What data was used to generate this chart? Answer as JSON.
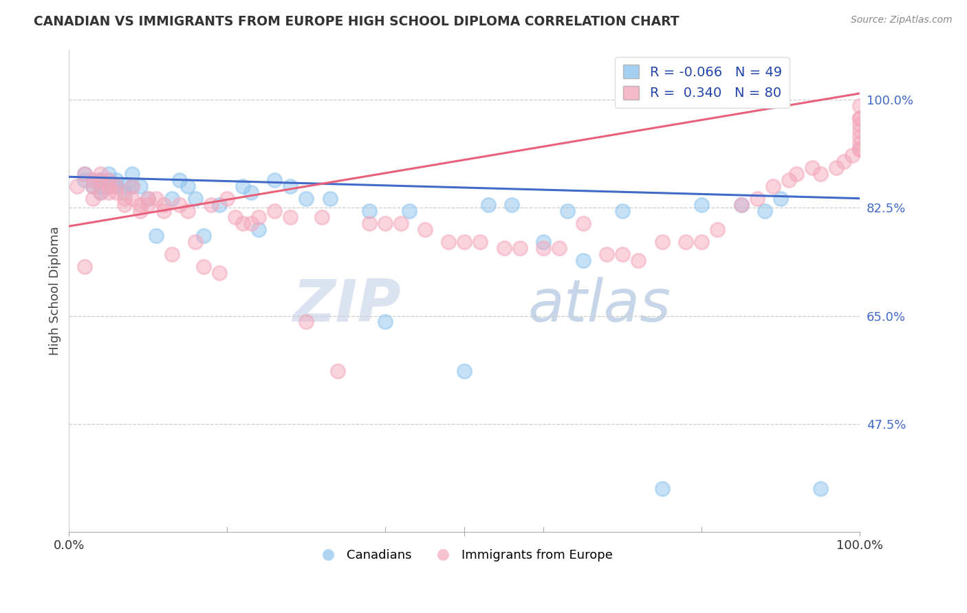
{
  "title": "CANADIAN VS IMMIGRANTS FROM EUROPE HIGH SCHOOL DIPLOMA CORRELATION CHART",
  "source": "Source: ZipAtlas.com",
  "ylabel": "High School Diploma",
  "ytick_labels": [
    "100.0%",
    "82.5%",
    "65.0%",
    "47.5%"
  ],
  "ytick_values": [
    1.0,
    0.825,
    0.65,
    0.475
  ],
  "xlim": [
    0.0,
    1.0
  ],
  "ylim": [
    0.3,
    1.08
  ],
  "legend_blue_r": "-0.066",
  "legend_blue_n": "49",
  "legend_pink_r": "0.340",
  "legend_pink_n": "80",
  "blue_color": "#8FC4EE",
  "pink_color": "#F4A8BC",
  "blue_line_color": "#4169C8",
  "pink_line_color": "#E8607A",
  "watermark_zip": "ZIP",
  "watermark_atlas": "atlas",
  "blue_points_x": [
    0.02,
    0.02,
    0.03,
    0.03,
    0.04,
    0.04,
    0.04,
    0.04,
    0.05,
    0.05,
    0.05,
    0.06,
    0.06,
    0.07,
    0.07,
    0.08,
    0.08,
    0.09,
    0.1,
    0.11,
    0.13,
    0.14,
    0.15,
    0.16,
    0.17,
    0.19,
    0.22,
    0.23,
    0.24,
    0.26,
    0.28,
    0.3,
    0.33,
    0.38,
    0.4,
    0.43,
    0.5,
    0.53,
    0.56,
    0.6,
    0.63,
    0.65,
    0.7,
    0.75,
    0.8,
    0.85,
    0.88,
    0.9,
    0.95
  ],
  "blue_points_y": [
    0.88,
    0.87,
    0.87,
    0.86,
    0.87,
    0.87,
    0.86,
    0.85,
    0.88,
    0.87,
    0.86,
    0.87,
    0.86,
    0.86,
    0.85,
    0.88,
    0.86,
    0.86,
    0.84,
    0.78,
    0.84,
    0.87,
    0.86,
    0.84,
    0.78,
    0.83,
    0.86,
    0.85,
    0.79,
    0.87,
    0.86,
    0.84,
    0.84,
    0.82,
    0.64,
    0.82,
    0.56,
    0.83,
    0.83,
    0.77,
    0.82,
    0.74,
    0.82,
    0.37,
    0.83,
    0.83,
    0.82,
    0.84,
    0.37
  ],
  "pink_points_x": [
    0.01,
    0.02,
    0.02,
    0.03,
    0.03,
    0.03,
    0.04,
    0.04,
    0.04,
    0.05,
    0.05,
    0.05,
    0.06,
    0.06,
    0.07,
    0.07,
    0.08,
    0.08,
    0.09,
    0.09,
    0.1,
    0.1,
    0.11,
    0.12,
    0.12,
    0.13,
    0.14,
    0.15,
    0.16,
    0.17,
    0.18,
    0.19,
    0.2,
    0.21,
    0.22,
    0.23,
    0.24,
    0.26,
    0.28,
    0.3,
    0.32,
    0.34,
    0.38,
    0.4,
    0.42,
    0.45,
    0.48,
    0.5,
    0.52,
    0.55,
    0.57,
    0.6,
    0.62,
    0.65,
    0.68,
    0.7,
    0.72,
    0.75,
    0.78,
    0.8,
    0.82,
    0.85,
    0.87,
    0.89,
    0.91,
    0.92,
    0.94,
    0.95,
    0.97,
    0.98,
    0.99,
    1.0,
    1.0,
    1.0,
    1.0,
    1.0,
    1.0,
    1.0,
    1.0,
    1.0
  ],
  "pink_points_y": [
    0.86,
    0.88,
    0.73,
    0.87,
    0.86,
    0.84,
    0.88,
    0.87,
    0.85,
    0.87,
    0.86,
    0.85,
    0.86,
    0.85,
    0.84,
    0.83,
    0.86,
    0.84,
    0.83,
    0.82,
    0.84,
    0.83,
    0.84,
    0.83,
    0.82,
    0.75,
    0.83,
    0.82,
    0.77,
    0.73,
    0.83,
    0.72,
    0.84,
    0.81,
    0.8,
    0.8,
    0.81,
    0.82,
    0.81,
    0.64,
    0.81,
    0.56,
    0.8,
    0.8,
    0.8,
    0.79,
    0.77,
    0.77,
    0.77,
    0.76,
    0.76,
    0.76,
    0.76,
    0.8,
    0.75,
    0.75,
    0.74,
    0.77,
    0.77,
    0.77,
    0.79,
    0.83,
    0.84,
    0.86,
    0.87,
    0.88,
    0.89,
    0.88,
    0.89,
    0.9,
    0.91,
    0.92,
    0.92,
    0.93,
    0.94,
    0.95,
    0.96,
    0.97,
    0.97,
    0.99
  ]
}
